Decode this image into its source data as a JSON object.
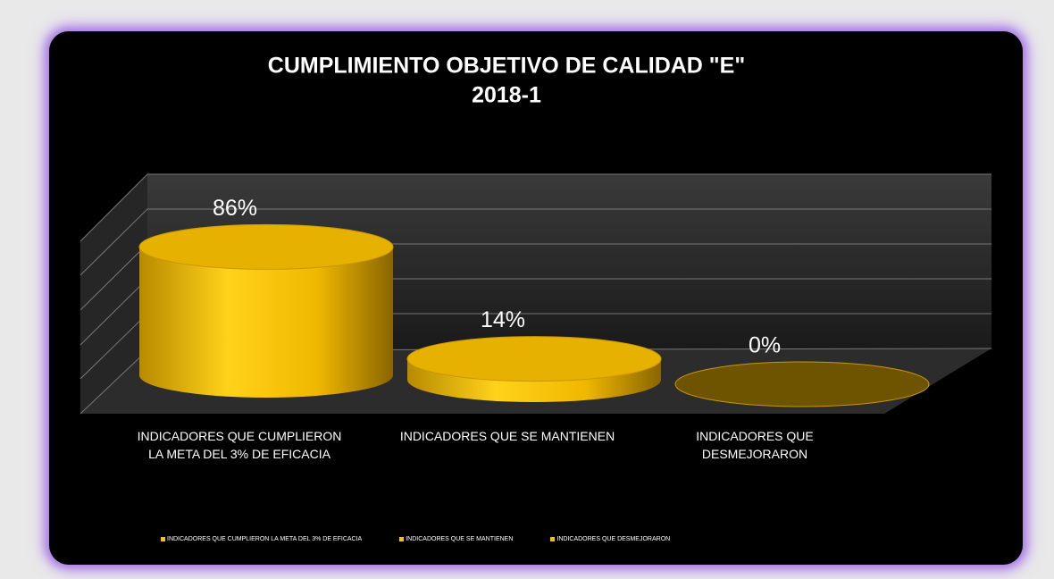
{
  "chart_data": {
    "type": "cylinder-bar",
    "title": "CUMPLIMIENTO OBJETIVO DE CALIDAD \"E\"",
    "subtitle": "2018-1",
    "categories": [
      "INDICADORES QUE CUMPLIERON LA META DEL 3% DE EFICACIA",
      "INDICADORES QUE SE MANTIENEN",
      "INDICADORES QUE DESMEJORARON"
    ],
    "values": [
      86,
      14,
      0
    ],
    "value_labels": [
      "86%",
      "14%",
      "0%"
    ],
    "color": "#f5c400",
    "ylim": [
      0,
      100
    ],
    "grid": true,
    "legend": "bottom"
  }
}
